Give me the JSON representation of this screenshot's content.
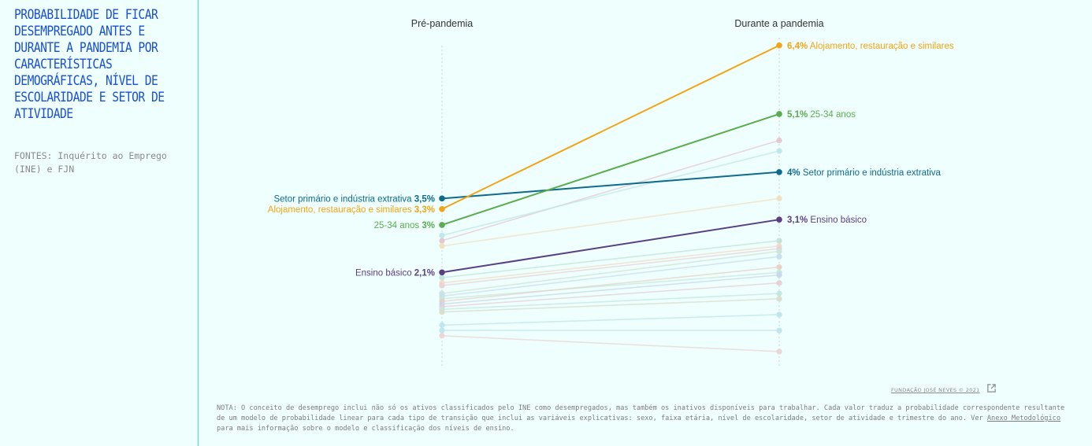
{
  "sidebar": {
    "title": "PROBABILIDADE DE FICAR DESEMPREGADO ANTES E DURANTE A PANDEMIA POR CARACTERÍSTICAS DEMOGRÁFICAS, NÍVEL DE ESCOLARIDADE E SETOR DE ATIVIDADE",
    "sources": "FONTES: Inquérito ao Emprego (INE) e FJN"
  },
  "footer": {
    "credit": "FUNDAÇÃO JOSÉ NEVES © 2021",
    "note_part1": "NOTA: O conceito de desemprego inclui não só os ativos classificados pelo INE como desempregados, mas também os inativos disponíveis para trabalhar. Cada valor traduz a probabilidade correspondente resultante de um modelo de probabilidade linear para cada tipo de transição que inclui as variáveis explicativas: sexo, faixa etária, nível de escolaridade, setor de atividade e trimestre do ano. Ver ",
    "note_link": "Anexo Metodológico",
    "note_part2": " para mais informação sobre o modelo e classificação dos níveis de ensino."
  },
  "chart_data": {
    "type": "slope",
    "columns": [
      "Pré-pandemia",
      "Durante a pandemia"
    ],
    "y_unit": "%",
    "ylim": [
      0.6,
      6.7
    ],
    "highlighted": [
      {
        "label": "Setor primário e indústria extrativa",
        "pre": 3.5,
        "during": 4.0,
        "pre_text": "3,5%",
        "during_text": "4%",
        "color": "#0f6a8f"
      },
      {
        "label": "Alojamento, restauração e similares",
        "pre": 3.3,
        "during": 6.4,
        "pre_text": "3,3%",
        "during_text": "6,4%",
        "color": "#f2a417"
      },
      {
        "label": "25-34 anos",
        "pre": 3.0,
        "during": 5.1,
        "pre_text": "3%",
        "during_text": "5,1%",
        "color": "#5aac4e"
      },
      {
        "label": "Ensino básico",
        "pre": 2.1,
        "during": 3.1,
        "pre_text": "2,1%",
        "during_text": "3,1%",
        "color": "#5b3f86"
      }
    ],
    "background_series": [
      {
        "pre": 2.7,
        "during": 4.6,
        "color": "#e6c8d3"
      },
      {
        "pre": 2.8,
        "during": 4.4,
        "color": "#bfe8ea"
      },
      {
        "pre": 2.6,
        "during": 3.5,
        "color": "#f1dfc2"
      },
      {
        "pre": 2.0,
        "during": 2.7,
        "color": "#c2e4d6"
      },
      {
        "pre": 1.9,
        "during": 2.6,
        "color": "#f1dcc7"
      },
      {
        "pre": 1.85,
        "during": 2.55,
        "color": "#e9d2d8"
      },
      {
        "pre": 1.7,
        "during": 2.5,
        "color": "#cfe3d7"
      },
      {
        "pre": 1.65,
        "during": 2.4,
        "color": "#c8dfee"
      },
      {
        "pre": 1.6,
        "during": 2.1,
        "color": "#c6e8df"
      },
      {
        "pre": 1.55,
        "during": 2.2,
        "color": "#e6d3c6"
      },
      {
        "pre": 1.5,
        "during": 2.05,
        "color": "#c9d8ea"
      },
      {
        "pre": 1.45,
        "during": 1.9,
        "color": "#e8cfd8"
      },
      {
        "pre": 1.4,
        "during": 1.7,
        "color": "#c4e8e0"
      },
      {
        "pre": 1.35,
        "during": 1.6,
        "color": "#d8e0cc"
      },
      {
        "pre": 1.1,
        "during": 1.3,
        "color": "#bfe6ee"
      },
      {
        "pre": 1.0,
        "during": 1.0,
        "color": "#bfe6ee"
      },
      {
        "pre": 0.9,
        "during": 0.6,
        "color": "#ecd6d6"
      }
    ]
  }
}
